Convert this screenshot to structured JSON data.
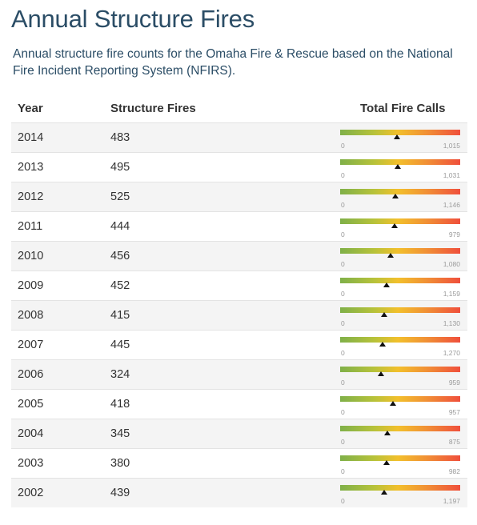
{
  "page": {
    "title": "Annual Structure Fires",
    "description": "Annual structure fire counts for the Omaha Fire & Rescue based on the National Fire Incident Reporting System (NFIRS)."
  },
  "table": {
    "headers": {
      "year": "Year",
      "fires": "Structure Fires",
      "calls": "Total Fire Calls"
    },
    "rows": [
      {
        "year": "2014",
        "fires": "483",
        "gauge_min": "0",
        "gauge_max": "1,015",
        "fires_value": 483,
        "max_value": 1015
      },
      {
        "year": "2013",
        "fires": "495",
        "gauge_min": "0",
        "gauge_max": "1,031",
        "fires_value": 495,
        "max_value": 1031
      },
      {
        "year": "2012",
        "fires": "525",
        "gauge_min": "0",
        "gauge_max": "1,146",
        "fires_value": 525,
        "max_value": 1146
      },
      {
        "year": "2011",
        "fires": "444",
        "gauge_min": "0",
        "gauge_max": "979",
        "fires_value": 444,
        "max_value": 979
      },
      {
        "year": "2010",
        "fires": "456",
        "gauge_min": "0",
        "gauge_max": "1,080",
        "fires_value": 456,
        "max_value": 1080
      },
      {
        "year": "2009",
        "fires": "452",
        "gauge_min": "0",
        "gauge_max": "1,159",
        "fires_value": 452,
        "max_value": 1159
      },
      {
        "year": "2008",
        "fires": "415",
        "gauge_min": "0",
        "gauge_max": "1,130",
        "fires_value": 415,
        "max_value": 1130
      },
      {
        "year": "2007",
        "fires": "445",
        "gauge_min": "0",
        "gauge_max": "1,270",
        "fires_value": 445,
        "max_value": 1270
      },
      {
        "year": "2006",
        "fires": "324",
        "gauge_min": "0",
        "gauge_max": "959",
        "fires_value": 324,
        "max_value": 959
      },
      {
        "year": "2005",
        "fires": "418",
        "gauge_min": "0",
        "gauge_max": "957",
        "fires_value": 418,
        "max_value": 957
      },
      {
        "year": "2004",
        "fires": "345",
        "gauge_min": "0",
        "gauge_max": "875",
        "fires_value": 345,
        "max_value": 875
      },
      {
        "year": "2003",
        "fires": "380",
        "gauge_min": "0",
        "gauge_max": "982",
        "fires_value": 380,
        "max_value": 982
      },
      {
        "year": "2002",
        "fires": "439",
        "gauge_min": "0",
        "gauge_max": "1,197",
        "fires_value": 439,
        "max_value": 1197
      }
    ]
  },
  "colors": {
    "title": "#2b4d66",
    "gauge_gradient": [
      "#7fb049",
      "#f2c02c",
      "#ef4f3c"
    ],
    "marker": "#111111"
  }
}
